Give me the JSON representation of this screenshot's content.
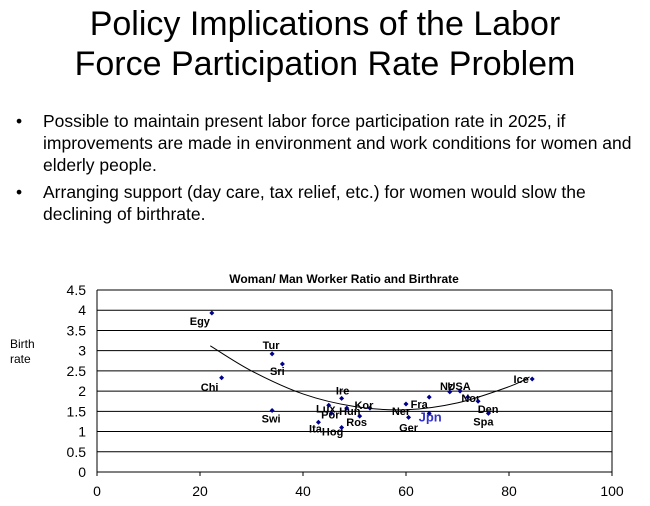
{
  "slide": {
    "title_line1": "Policy Implications of the Labor",
    "title_line2": "Force Participation Rate Problem",
    "bullets": [
      "Possible to maintain present labor force participation rate in 2025, if improvements are made in environment and work conditions for women and elderly people.",
      "Arranging support (day care, tax relief, etc.) for women would slow the declining of birthrate."
    ],
    "bullet_glyph": "•"
  },
  "chart_data": {
    "type": "scatter",
    "title": "Woman/ Man  Worker Ratio and Birthrate",
    "ylabel_line1": "Birth",
    "ylabel_line2": "rate",
    "xlabel": "",
    "xlim": [
      0,
      100
    ],
    "ylim": [
      0,
      4.5
    ],
    "x_ticks": [
      "0",
      "20",
      "40",
      "60",
      "80",
      "100"
    ],
    "y_ticks": [
      "0",
      "0.5",
      "1",
      "1.5",
      "2",
      "2.5",
      "3",
      "3.5",
      "4",
      "4.5"
    ],
    "grid": "horizontal",
    "colors": {
      "point": "#00008b",
      "highlight": "#3333cc",
      "trend": "#000000",
      "grid": "#000000"
    },
    "points": [
      {
        "label": "Egy",
        "x": 22.3,
        "y": 3.93
      },
      {
        "label": "Tur",
        "x": 34.0,
        "y": 2.92
      },
      {
        "label": "Sri",
        "x": 36.0,
        "y": 2.67
      },
      {
        "label": "Chi",
        "x": 24.2,
        "y": 2.33
      },
      {
        "label": "Swi",
        "x": 34.0,
        "y": 1.52
      },
      {
        "label": "Lux",
        "x": 45.0,
        "y": 1.65
      },
      {
        "label": "Ire",
        "x": 47.5,
        "y": 1.82
      },
      {
        "label": "Hun",
        "x": 48.5,
        "y": 1.58
      },
      {
        "label": "Kor",
        "x": 53.0,
        "y": 1.58
      },
      {
        "label": "Por",
        "x": 45.5,
        "y": 1.45
      },
      {
        "label": "Ros",
        "x": 51.0,
        "y": 1.38
      },
      {
        "label": "Ita",
        "x": 43.0,
        "y": 1.23
      },
      {
        "label": "Hog",
        "x": 47.5,
        "y": 1.1
      },
      {
        "label": "Ner",
        "x": 60.0,
        "y": 1.68
      },
      {
        "label": "Ger",
        "x": 60.5,
        "y": 1.35
      },
      {
        "label": "Jpn",
        "x": 64.5,
        "y": 1.45,
        "highlight": true
      },
      {
        "label": "Fra",
        "x": 64.5,
        "y": 1.85
      },
      {
        "label": "Nz",
        "x": 68.5,
        "y": 1.98
      },
      {
        "label": "USA",
        "x": 70.5,
        "y": 2.0
      },
      {
        "label": "Nor",
        "x": 72.0,
        "y": 1.85
      },
      {
        "label": "Den",
        "x": 74.0,
        "y": 1.75
      },
      {
        "label": "Spa",
        "x": 76.0,
        "y": 1.45
      },
      {
        "label": "Ice",
        "x": 84.5,
        "y": 2.3
      }
    ],
    "trendline": [
      {
        "x": 22,
        "y": 3.12
      },
      {
        "x": 30,
        "y": 2.5
      },
      {
        "x": 40,
        "y": 1.93
      },
      {
        "x": 50,
        "y": 1.62
      },
      {
        "x": 60,
        "y": 1.54
      },
      {
        "x": 70,
        "y": 1.71
      },
      {
        "x": 80,
        "y": 2.11
      },
      {
        "x": 84,
        "y": 2.35
      }
    ]
  }
}
